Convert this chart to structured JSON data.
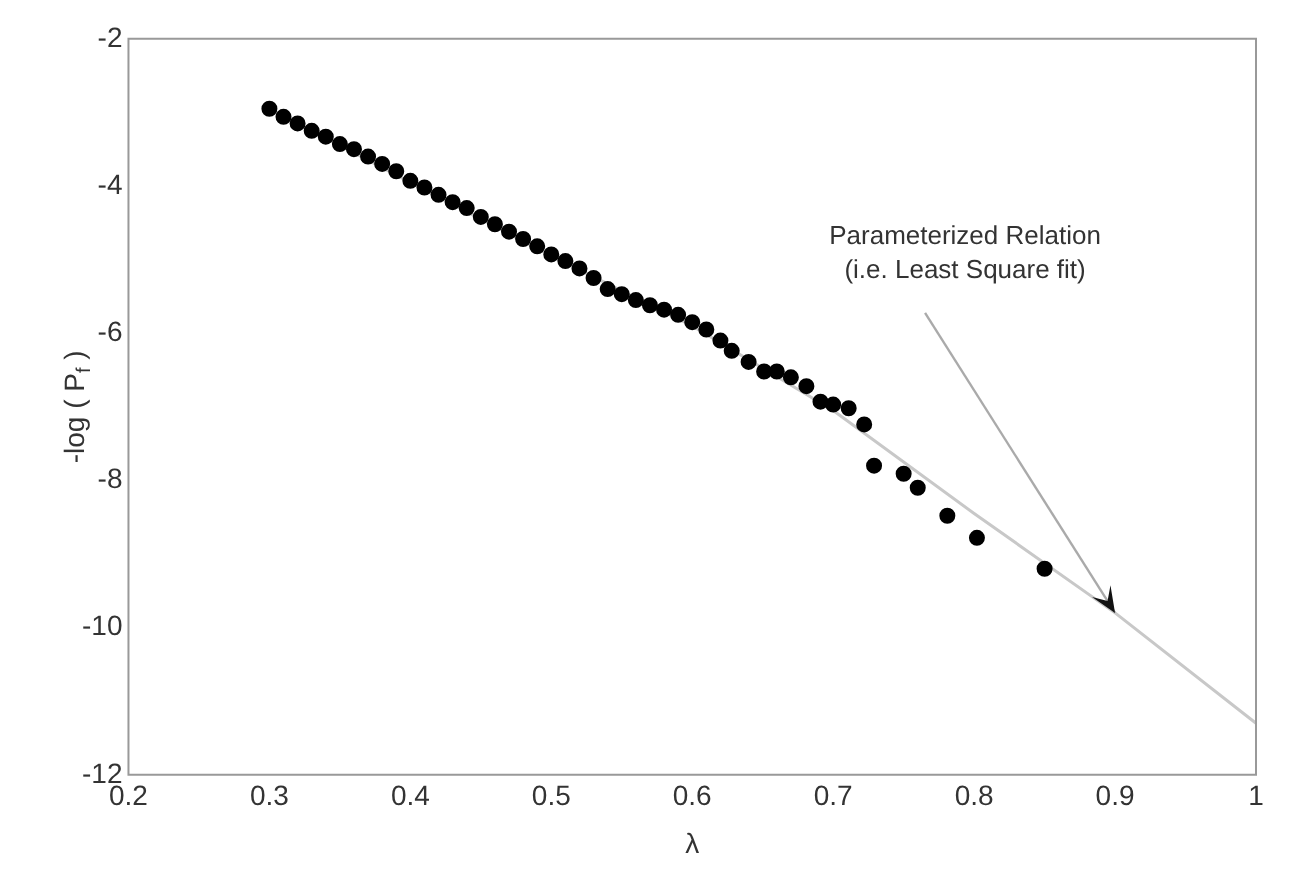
{
  "chart_data": {
    "type": "scatter",
    "xlabel": "λ",
    "ylabel": "-log ( P$_{f}$ )",
    "xlim": [
      0.2,
      1
    ],
    "xticks": [
      0.2,
      0.3,
      0.4,
      0.5,
      0.6,
      0.7,
      0.8,
      0.9,
      1
    ],
    "ylim": [
      -12,
      -2
    ],
    "yticks": [
      -12,
      -10,
      -8,
      -6,
      -4,
      -2
    ],
    "grid": false,
    "series": [
      {
        "color": "#000000",
        "marker": "circle",
        "x": [
          0.3,
          0.31,
          0.32,
          0.33,
          0.34,
          0.35,
          0.36,
          0.37,
          0.38,
          0.39,
          0.4,
          0.41,
          0.42,
          0.43,
          0.44,
          0.45,
          0.46,
          0.47,
          0.48,
          0.49,
          0.5,
          0.51,
          0.52,
          0.53,
          0.54,
          0.55,
          0.56,
          0.57,
          0.58,
          0.59,
          0.6,
          0.61,
          0.62,
          0.628,
          0.64,
          0.651,
          0.66,
          0.67,
          0.681,
          0.691,
          0.7,
          0.711,
          0.722,
          0.729,
          0.75,
          0.76,
          0.781,
          0.802,
          0.85
        ],
        "values": [
          -2.95,
          -3.06,
          -3.15,
          -3.25,
          -3.33,
          -3.43,
          -3.5,
          -3.6,
          -3.7,
          -3.8,
          -3.93,
          -4.02,
          -4.12,
          -4.22,
          -4.3,
          -4.42,
          -4.52,
          -4.62,
          -4.72,
          -4.82,
          -4.93,
          -5.02,
          -5.12,
          -5.25,
          -5.4,
          -5.47,
          -5.55,
          -5.62,
          -5.68,
          -5.75,
          -5.85,
          -5.95,
          -6.1,
          -6.24,
          -6.39,
          -6.52,
          -6.52,
          -6.6,
          -6.72,
          -6.93,
          -6.97,
          -7.02,
          -7.24,
          -7.8,
          -7.91,
          -8.1,
          -8.48,
          -8.78,
          -9.2
        ]
      },
      {
        "type": "line",
        "color": "#c8c8c8",
        "x": [
          0.3,
          0.4,
          0.5,
          0.6,
          0.7,
          0.8,
          0.9,
          1
        ],
        "values": [
          -2.95,
          -3.95,
          -4.95,
          -5.9,
          -7.05,
          -8.45,
          -9.8,
          -11.3
        ]
      }
    ],
    "annotations": [
      {
        "text": "Parameterized Relation\n(i.e. Least Square fit)",
        "x": 0.9,
        "y": -9.8
      }
    ]
  }
}
